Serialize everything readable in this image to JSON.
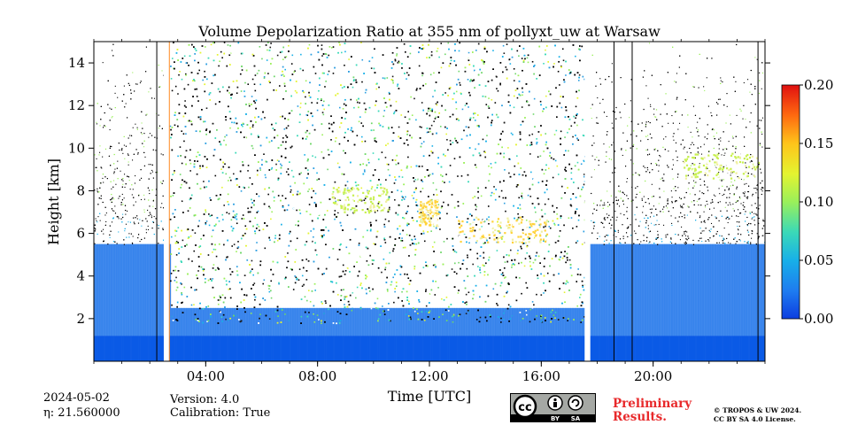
{
  "chart_data": {
    "type": "heatmap",
    "title": "Volume Depolarization Ratio at 355 nm of pollyxt_uw at Warsaw",
    "xlabel": "Time [UTC]",
    "ylabel": "Height [km]",
    "xlim_hours": [
      0,
      24
    ],
    "ylim_km": [
      0,
      15
    ],
    "x_ticks": [
      {
        "hour": 4,
        "label": "04:00"
      },
      {
        "hour": 8,
        "label": "08:00"
      },
      {
        "hour": 12,
        "label": "12:00"
      },
      {
        "hour": 16,
        "label": "16:00"
      },
      {
        "hour": 20,
        "label": "20:00"
      }
    ],
    "y_ticks": [
      2,
      4,
      6,
      8,
      10,
      12,
      14
    ],
    "colorbar": {
      "min": 0.0,
      "max": 0.2,
      "ticks": [
        "0.00",
        "0.05",
        "0.10",
        "0.15",
        "0.20"
      ]
    },
    "data_gaps_hours": [
      [
        2.5,
        2.7
      ],
      [
        17.55,
        17.75
      ]
    ],
    "vertical_markers_hours": [
      2.25,
      2.7,
      18.6,
      19.25,
      23.75
    ],
    "noise_onset_km": {
      "daytime": 1.8,
      "nighttime": 5.5
    },
    "aerosol_layer_top_km": {
      "nighttime": 5.5,
      "daytime": 2.5
    },
    "high_depol_features": [
      {
        "name": "ice-cloud-1",
        "t_start": 13.0,
        "t_end": 16.2,
        "h_km": 6.2,
        "value": 0.15
      },
      {
        "name": "ice-cloud-2",
        "t_start": 11.6,
        "t_end": 12.3,
        "h_km": 7.0,
        "value": 0.15
      },
      {
        "name": "ice-cloud-3",
        "t_start": 8.5,
        "t_end": 10.5,
        "h_km": 7.6,
        "value": 0.1
      },
      {
        "name": "ice-cloud-4",
        "t_start": 21.0,
        "t_end": 23.8,
        "h_km": 9.2,
        "value": 0.1
      }
    ]
  },
  "footer": {
    "date": "2024-05-02",
    "eta": "$\\eta$: 21.560000",
    "eta_display": "η: 21.560000",
    "version": "Version: 4.0",
    "calibration": "Calibration: True",
    "preliminary": [
      "Preliminary",
      "Results."
    ],
    "copyright": [
      "© TROPOS & UW 2024.",
      "CC BY SA 4.0 License."
    ],
    "license_badge": {
      "cc": "cc",
      "by": "BY",
      "sa": "SA"
    }
  }
}
